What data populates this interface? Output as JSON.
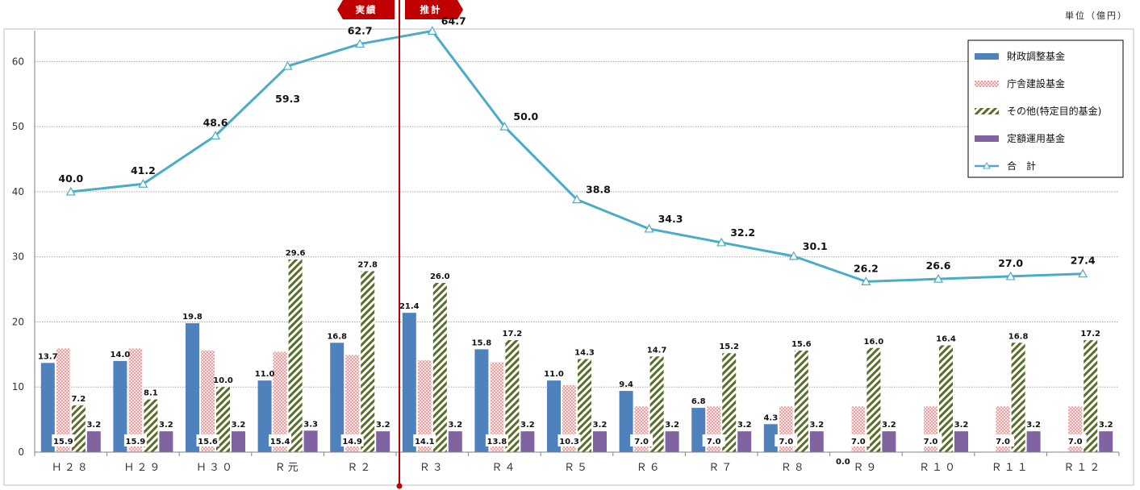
{
  "unit_label": "単位（億円）",
  "phase_labels": {
    "actual": "実績",
    "projected": "推計"
  },
  "colors": {
    "fiscal": "#4f81bd",
    "building": "#d9534f",
    "other": "#5a6e2c",
    "fixed": "#8064a2",
    "total": "#4bacc6",
    "divider": "#c00000"
  },
  "chart_data": {
    "type": "bar",
    "categories": [
      "Ｈ２８",
      "Ｈ２９",
      "Ｈ３０",
      "Ｒ元",
      "Ｒ２",
      "Ｒ３",
      "Ｒ４",
      "Ｒ５",
      "Ｒ６",
      "Ｒ７",
      "Ｒ８",
      "Ｒ９",
      "Ｒ１０",
      "Ｒ１１",
      "Ｒ１２"
    ],
    "ylim": [
      0,
      65
    ],
    "yticks": [
      0,
      10,
      20,
      30,
      40,
      50,
      60
    ],
    "grid": true,
    "legend_position": "top-right",
    "xlabel": "",
    "ylabel": "",
    "series": [
      {
        "name": "財政調整基金",
        "type": "bar",
        "values": [
          13.7,
          14.0,
          19.8,
          11.0,
          16.8,
          21.4,
          15.8,
          11.0,
          9.4,
          6.8,
          4.3,
          0.0,
          null,
          null,
          null
        ]
      },
      {
        "name": "庁舎建設基金",
        "type": "bar",
        "values": [
          15.9,
          15.9,
          15.6,
          15.4,
          14.9,
          14.1,
          13.8,
          10.3,
          7.0,
          7.0,
          7.0,
          7.0,
          7.0,
          7.0,
          7.0
        ]
      },
      {
        "name": "その他(特定目的基金)",
        "type": "bar",
        "values": [
          7.2,
          8.1,
          10.0,
          29.6,
          27.8,
          26.0,
          17.2,
          14.3,
          14.7,
          15.2,
          15.6,
          16.0,
          16.4,
          16.8,
          17.2
        ]
      },
      {
        "name": "定額運用基金",
        "type": "bar",
        "values": [
          3.2,
          3.2,
          3.2,
          3.3,
          3.2,
          3.2,
          3.2,
          3.2,
          3.2,
          3.2,
          3.2,
          3.2,
          3.2,
          3.2,
          3.2
        ]
      },
      {
        "name": "合　計",
        "type": "line",
        "values": [
          40.0,
          41.2,
          48.6,
          59.3,
          62.7,
          64.7,
          50.0,
          38.8,
          34.3,
          32.2,
          30.1,
          26.2,
          26.6,
          27.0,
          27.4
        ]
      }
    ]
  }
}
